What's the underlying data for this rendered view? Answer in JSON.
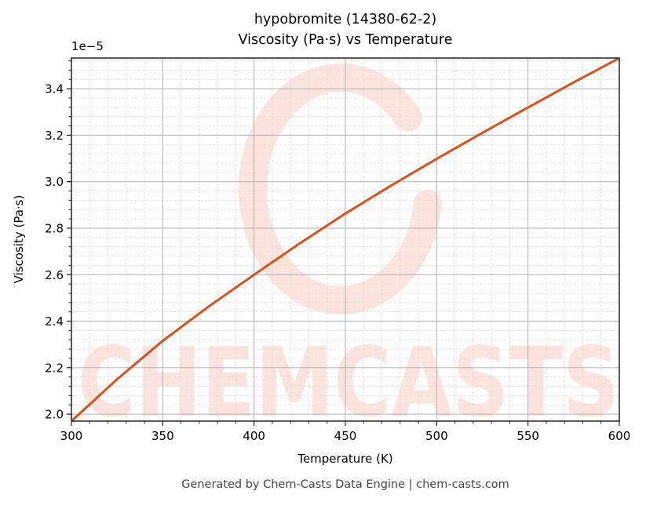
{
  "header": {
    "title_line1": "hypobromite (14380-62-2)",
    "title_line2": "Viscosity (Pa·s) vs Temperature"
  },
  "axes": {
    "y_offset_label": "1e−5",
    "xlabel": "Temperature (K)",
    "ylabel": "Viscosity (Pa·s)"
  },
  "footer": {
    "text": "Generated by Chem-Casts Data Engine | chem-casts.com"
  },
  "watermark": {
    "text": "CHEMCASTS",
    "color": "#fde3dd"
  },
  "colors": {
    "line": "#d9521e",
    "major_grid": "#b0b0b0",
    "minor_grid": "#dddddd",
    "axis": "#222222"
  },
  "chart_data": {
    "type": "line",
    "title": "hypobromite (14380-62-2)\nViscosity (Pa·s) vs Temperature",
    "xlabel": "Temperature (K)",
    "ylabel": "Viscosity (Pa·s)",
    "y_scale_factor": "1e-5",
    "xlim": [
      300,
      600
    ],
    "ylim": [
      1.97,
      3.532
    ],
    "x_ticks": [
      300,
      350,
      400,
      450,
      500,
      550,
      600
    ],
    "x_tick_labels": [
      "300",
      "350",
      "400",
      "450",
      "500",
      "550",
      "600"
    ],
    "y_ticks": [
      2.0,
      2.2,
      2.4,
      2.6,
      2.8,
      3.0,
      3.2,
      3.4
    ],
    "y_tick_labels": [
      "2.0",
      "2.2",
      "2.4",
      "2.6",
      "2.8",
      "3.0",
      "3.2",
      "3.4"
    ],
    "grid": true,
    "minor_grid": true,
    "legend": null,
    "series": [
      {
        "name": "Viscosity",
        "x": [
          300,
          325,
          350,
          375,
          400,
          425,
          450,
          475,
          500,
          525,
          550,
          575,
          600
        ],
        "values": [
          1.97,
          2.15,
          2.315,
          2.462,
          2.6,
          2.734,
          2.863,
          2.983,
          3.098,
          3.21,
          3.319,
          3.427,
          3.532
        ]
      }
    ]
  }
}
